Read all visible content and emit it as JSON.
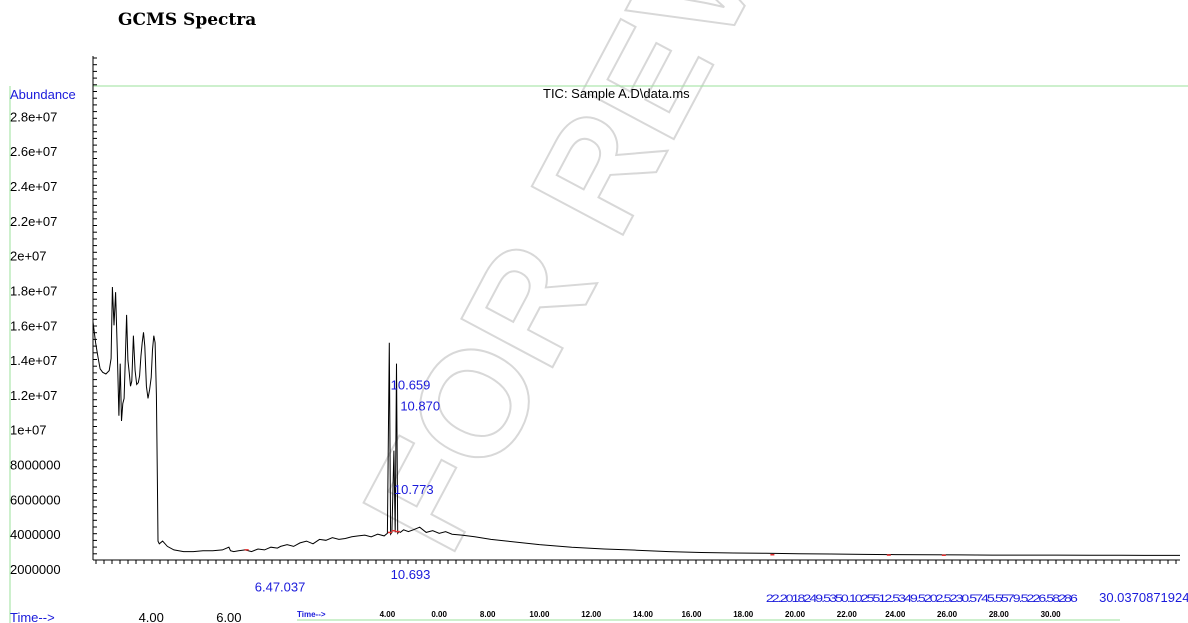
{
  "page_title": "GCMS Spectra",
  "watermark": "FOR REVIEW",
  "chart_data": {
    "type": "line",
    "title": "TIC: Sample A.D\\data.ms",
    "ylabel": "Abundance",
    "xlabel": "Time-->",
    "xlabel_inner": "Time-->",
    "ylim": [
      2000000,
      29000000
    ],
    "xlim": [
      0.2,
      33.8
    ],
    "y_ticks": [
      {
        "value": 2000000,
        "label": "2000000"
      },
      {
        "value": 4000000,
        "label": "4000000"
      },
      {
        "value": 6000000,
        "label": "6000000"
      },
      {
        "value": 8000000,
        "label": "8000000"
      },
      {
        "value": 10000000,
        "label": "1e+07"
      },
      {
        "value": 12000000,
        "label": "1.2e+07"
      },
      {
        "value": 14000000,
        "label": "1.4e+07"
      },
      {
        "value": 16000000,
        "label": "1.6e+07"
      },
      {
        "value": 18000000,
        "label": "1.8e+07"
      },
      {
        "value": 20000000,
        "label": "2e+07"
      },
      {
        "value": 22000000,
        "label": "2.2e+07"
      },
      {
        "value": 24000000,
        "label": "2.4e+07"
      },
      {
        "value": 26000000,
        "label": "2.6e+07"
      },
      {
        "value": 28000000,
        "label": "2.8e+07"
      }
    ],
    "x_ticks_primary": [
      {
        "value": 2.0,
        "label": "4.00"
      },
      {
        "value": 4.4,
        "label": "6.00"
      }
    ],
    "x_ticks_secondary": [
      {
        "value": 9.3,
        "label": "4.00"
      },
      {
        "value": 10.9,
        "label": "0.00"
      },
      {
        "value": 12.4,
        "label": "8.00"
      },
      {
        "value": 14.0,
        "label": "10.00"
      },
      {
        "value": 15.6,
        "label": "12.00"
      },
      {
        "value": 17.2,
        "label": "14.00"
      },
      {
        "value": 18.7,
        "label": "16.00"
      },
      {
        "value": 20.3,
        "label": "18.00"
      },
      {
        "value": 21.9,
        "label": "20.00"
      },
      {
        "value": 23.5,
        "label": "22.00"
      },
      {
        "value": 25.0,
        "label": "24.00"
      },
      {
        "value": 26.6,
        "label": "26.00"
      },
      {
        "value": 28.2,
        "label": "28.00"
      },
      {
        "value": 29.8,
        "label": "30.00"
      }
    ],
    "peak_labels": [
      {
        "x": 9.4,
        "y": 12600000,
        "label": "10.659"
      },
      {
        "x": 9.7,
        "y": 11400000,
        "label": "10.870"
      },
      {
        "x": 9.5,
        "y": 6600000,
        "label": "10.773"
      },
      {
        "x": 9.4,
        "y": 1700000,
        "label": "10.693"
      },
      {
        "x": 5.2,
        "y": 1000000,
        "label": "6.47.037"
      },
      {
        "x": 21.0,
        "y": 400000,
        "label": "22.2018249.5350.1025512.5349.5202.5230.5745.5579.5226.58286"
      },
      {
        "x": 31.3,
        "y": 400000,
        "label": "30.0370871924"
      }
    ],
    "series": [
      {
        "x": [
          0.2,
          0.28,
          0.35,
          0.42,
          0.5,
          0.6,
          0.7,
          0.76,
          0.8,
          0.85,
          0.9,
          0.95,
          1.0,
          1.04,
          1.08,
          1.12,
          1.16,
          1.2,
          1.24,
          1.28,
          1.32,
          1.36,
          1.4,
          1.45,
          1.5,
          1.55,
          1.6,
          1.64,
          1.68,
          1.72,
          1.76,
          1.8,
          1.85,
          1.9,
          1.95,
          2.0,
          2.04,
          2.08,
          2.12,
          2.16,
          2.19,
          2.21,
          2.25,
          2.35,
          2.5,
          2.7,
          3.0,
          3.3,
          3.6,
          3.9,
          4.2,
          4.4,
          4.45,
          4.55,
          4.7,
          4.9,
          5.1,
          5.3,
          5.5,
          5.7,
          5.9,
          6.0,
          6.2,
          6.4,
          6.6,
          6.8,
          7.0,
          7.2,
          7.4,
          7.6,
          7.8,
          8.0,
          8.2,
          8.4,
          8.6,
          8.8,
          9.0,
          9.2,
          9.3,
          9.36,
          9.4,
          9.44,
          9.5,
          9.54,
          9.58,
          9.62,
          9.66,
          9.7,
          9.8,
          9.95,
          10.1,
          10.3,
          10.5,
          10.7,
          10.9,
          11.1,
          11.3,
          11.6,
          12.0,
          12.5,
          13.0,
          14.0,
          15.0,
          16.0,
          17.0,
          18.0,
          19.0,
          20.0,
          21.0,
          22.0,
          23.0,
          24.0,
          25.0,
          26.0,
          27.0,
          28.0,
          29.0,
          30.0,
          31.0,
          32.0,
          33.0,
          33.8
        ],
        "y": [
          16200000,
          15000000,
          14200000,
          13500000,
          13300000,
          13200000,
          13400000,
          14100000,
          18200000,
          16000000,
          17900000,
          14500000,
          10800000,
          13800000,
          10500000,
          11500000,
          11800000,
          14200000,
          16600000,
          14000000,
          13300000,
          12500000,
          12800000,
          15400000,
          13400000,
          12600000,
          12700000,
          13100000,
          14200000,
          15000000,
          15600000,
          14800000,
          12500000,
          11800000,
          12300000,
          13000000,
          14600000,
          15400000,
          15000000,
          12000000,
          7000000,
          3600000,
          3450000,
          3600000,
          3300000,
          3100000,
          3000000,
          3000000,
          3050000,
          3050000,
          3100000,
          3250000,
          3050000,
          3000000,
          3050000,
          3100000,
          3000000,
          3150000,
          3100000,
          3250000,
          3200000,
          3300000,
          3400000,
          3300000,
          3500000,
          3600000,
          3450000,
          3700000,
          3650000,
          3800000,
          3700000,
          3750000,
          3850000,
          3900000,
          3950000,
          3850000,
          4000000,
          3900000,
          4050000,
          15000000,
          4000000,
          4100000,
          8800000,
          4100000,
          13800000,
          4050000,
          4150000,
          4100000,
          4250000,
          4150000,
          4250000,
          4400000,
          4100000,
          4200000,
          4050000,
          4150000,
          4000000,
          3950000,
          3850000,
          3700000,
          3600000,
          3400000,
          3250000,
          3150000,
          3080000,
          3000000,
          2950000,
          2920000,
          2900000,
          2880000,
          2860000,
          2840000,
          2830000,
          2820000,
          2810000,
          2800000,
          2800000,
          2800000,
          2790000,
          2790000,
          2780000,
          2780000
        ]
      }
    ]
  }
}
